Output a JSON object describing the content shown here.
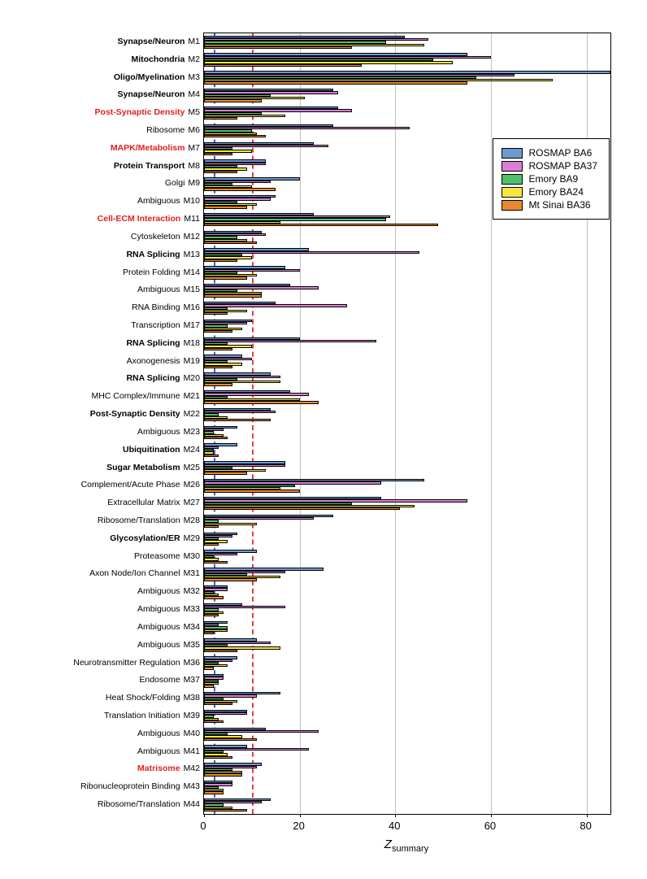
{
  "chart": {
    "type": "bar-grouped-horizontal",
    "x_axis": {
      "title": "Z_summary",
      "min": 0,
      "max": 85,
      "ticks": [
        0,
        20,
        40,
        60,
        80
      ],
      "gridlines": [
        20,
        40,
        60,
        80
      ]
    },
    "reference_lines": [
      {
        "value": 2,
        "color": "#4060d0",
        "style": "dashed"
      },
      {
        "value": 10,
        "color": "#e04040",
        "style": "dashed"
      }
    ],
    "series": [
      {
        "key": "ros6",
        "label": "ROSMAP BA6",
        "color": "#6a9bd1"
      },
      {
        "key": "ros37",
        "label": "ROSMAP BA37",
        "color": "#d97fd4"
      },
      {
        "key": "em9",
        "label": "Emory BA9",
        "color": "#4fbf6a"
      },
      {
        "key": "em24",
        "label": "Emory BA24",
        "color": "#f5e63c"
      },
      {
        "key": "mts36",
        "label": "Mt Sinai BA36",
        "color": "#e8882c"
      }
    ],
    "background_color": "#ffffff",
    "grid_color": "#c0c0c0",
    "label_fontsize": 10.5,
    "tick_fontsize": 13,
    "modules": [
      {
        "code": "M1",
        "name": "Synapse/Neuron",
        "style": "bold",
        "values": {
          "ros6": 42,
          "ros37": 47,
          "em9": 38,
          "em24": 46,
          "mts36": 31
        }
      },
      {
        "code": "M2",
        "name": "Mitochondria",
        "style": "bold",
        "values": {
          "ros6": 55,
          "ros37": 60,
          "em9": 48,
          "em24": 52,
          "mts36": 33
        }
      },
      {
        "code": "M3",
        "name": "Oligo/Myelination",
        "style": "bold",
        "values": {
          "ros6": 85,
          "ros37": 65,
          "em9": 57,
          "em24": 73,
          "mts36": 55
        }
      },
      {
        "code": "M4",
        "name": "Synapse/Neuron",
        "style": "bold",
        "values": {
          "ros6": 27,
          "ros37": 28,
          "em9": 14,
          "em24": 21,
          "mts36": 12
        }
      },
      {
        "code": "M5",
        "name": "Post-Synaptic Density",
        "style": "red",
        "values": {
          "ros6": 28,
          "ros37": 31,
          "em9": 12,
          "em24": 17,
          "mts36": 7
        }
      },
      {
        "code": "M6",
        "name": "Ribosome",
        "style": "plain",
        "values": {
          "ros6": 27,
          "ros37": 43,
          "em9": 10,
          "em24": 11,
          "mts36": 13
        }
      },
      {
        "code": "M7",
        "name": "MAPK/Metabolism",
        "style": "red",
        "values": {
          "ros6": 23,
          "ros37": 26,
          "em9": 6,
          "em24": 10,
          "mts36": 6
        }
      },
      {
        "code": "M8",
        "name": "Protein Transport",
        "style": "bold",
        "values": {
          "ros6": 13,
          "ros37": 13,
          "em9": 7,
          "em24": 9,
          "mts36": 7
        }
      },
      {
        "code": "M9",
        "name": "Golgi",
        "style": "plain",
        "values": {
          "ros6": 20,
          "ros37": 14,
          "em9": 6,
          "em24": 10,
          "mts36": 15
        }
      },
      {
        "code": "M10",
        "name": "Ambiguous",
        "style": "plain",
        "values": {
          "ros6": 15,
          "ros37": 14,
          "em9": 7,
          "em24": 11,
          "mts36": 9
        }
      },
      {
        "code": "M11",
        "name": "Cell-ECM Interaction",
        "style": "red",
        "values": {
          "ros6": 23,
          "ros37": 39,
          "em9": 38,
          "em24": 16,
          "mts36": 49
        }
      },
      {
        "code": "M12",
        "name": "Cytoskeleton",
        "style": "plain",
        "values": {
          "ros6": 12,
          "ros37": 13,
          "em9": 7,
          "em24": 9,
          "mts36": 11
        }
      },
      {
        "code": "M13",
        "name": "RNA Splicing",
        "style": "bold",
        "values": {
          "ros6": 22,
          "ros37": 45,
          "em9": 8,
          "em24": 10,
          "mts36": 7
        }
      },
      {
        "code": "M14",
        "name": "Protein Folding",
        "style": "plain",
        "values": {
          "ros6": 17,
          "ros37": 20,
          "em9": 7,
          "em24": 11,
          "mts36": 9
        }
      },
      {
        "code": "M15",
        "name": "Ambiguous",
        "style": "plain",
        "values": {
          "ros6": 18,
          "ros37": 24,
          "em9": 7,
          "em24": 12,
          "mts36": 12
        }
      },
      {
        "code": "M16",
        "name": "RNA Binding",
        "style": "plain",
        "values": {
          "ros6": 15,
          "ros37": 30,
          "em9": 5,
          "em24": 9,
          "mts36": 5
        }
      },
      {
        "code": "M17",
        "name": "Transcription",
        "style": "plain",
        "values": {
          "ros6": 10,
          "ros37": 9,
          "em9": 5,
          "em24": 8,
          "mts36": 6
        }
      },
      {
        "code": "M18",
        "name": "RNA Splicing",
        "style": "bold",
        "values": {
          "ros6": 20,
          "ros37": 36,
          "em9": 5,
          "em24": 10,
          "mts36": 6
        }
      },
      {
        "code": "M19",
        "name": "Axonogenesis",
        "style": "plain",
        "values": {
          "ros6": 8,
          "ros37": 10,
          "em9": 5,
          "em24": 8,
          "mts36": 6
        }
      },
      {
        "code": "M20",
        "name": "RNA Splicing",
        "style": "bold",
        "values": {
          "ros6": 14,
          "ros37": 16,
          "em9": 7,
          "em24": 16,
          "mts36": 6
        }
      },
      {
        "code": "M21",
        "name": "MHC Complex/Immune",
        "style": "plain",
        "values": {
          "ros6": 18,
          "ros37": 22,
          "em9": 5,
          "em24": 20,
          "mts36": 24
        }
      },
      {
        "code": "M22",
        "name": "Post-Synaptic Density",
        "style": "bold",
        "values": {
          "ros6": 14,
          "ros37": 15,
          "em9": 3,
          "em24": 5,
          "mts36": 14
        }
      },
      {
        "code": "M23",
        "name": "Ambiguous",
        "style": "plain",
        "values": {
          "ros6": 7,
          "ros37": 4,
          "em9": 2,
          "em24": 4,
          "mts36": 5
        }
      },
      {
        "code": "M24",
        "name": "Ubiquitination",
        "style": "bold",
        "values": {
          "ros6": 7,
          "ros37": 3,
          "em9": 2,
          "em24": 2,
          "mts36": 3
        }
      },
      {
        "code": "M25",
        "name": "Sugar Metabolism",
        "style": "bold",
        "values": {
          "ros6": 17,
          "ros37": 17,
          "em9": 6,
          "em24": 13,
          "mts36": 9
        }
      },
      {
        "code": "M26",
        "name": "Complement/Acute Phase",
        "style": "plain",
        "values": {
          "ros6": 46,
          "ros37": 37,
          "em9": 19,
          "em24": 16,
          "mts36": 20
        }
      },
      {
        "code": "M27",
        "name": "Extracellular Matrix",
        "style": "plain",
        "values": {
          "ros6": 37,
          "ros37": 55,
          "em9": 31,
          "em24": 44,
          "mts36": 41
        }
      },
      {
        "code": "M28",
        "name": "Ribosome/Translation",
        "style": "plain",
        "values": {
          "ros6": 27,
          "ros37": 23,
          "em9": 3,
          "em24": 11,
          "mts36": 3
        }
      },
      {
        "code": "M29",
        "name": "Glycosylation/ER",
        "style": "bold",
        "values": {
          "ros6": 7,
          "ros37": 6,
          "em9": 3,
          "em24": 5,
          "mts36": 3
        }
      },
      {
        "code": "M30",
        "name": "Proteasome",
        "style": "plain",
        "values": {
          "ros6": 11,
          "ros37": 7,
          "em9": 2,
          "em24": 3,
          "mts36": 5
        }
      },
      {
        "code": "M31",
        "name": "Axon Node/Ion Channel",
        "style": "plain",
        "values": {
          "ros6": 25,
          "ros37": 17,
          "em9": 9,
          "em24": 16,
          "mts36": 11
        }
      },
      {
        "code": "M32",
        "name": "Ambiguous",
        "style": "plain",
        "values": {
          "ros6": 5,
          "ros37": 5,
          "em9": 2,
          "em24": 3,
          "mts36": 4
        }
      },
      {
        "code": "M33",
        "name": "Ambiguous",
        "style": "plain",
        "values": {
          "ros6": 8,
          "ros37": 17,
          "em9": 3,
          "em24": 4,
          "mts36": 3
        }
      },
      {
        "code": "M34",
        "name": "Ambiguous",
        "style": "plain",
        "values": {
          "ros6": 5,
          "ros37": 3,
          "em9": 5,
          "em24": 5,
          "mts36": 2
        }
      },
      {
        "code": "M35",
        "name": "Ambiguous",
        "style": "plain",
        "values": {
          "ros6": 11,
          "ros37": 14,
          "em9": 5,
          "em24": 16,
          "mts36": 7
        }
      },
      {
        "code": "M36",
        "name": "Neurotransmitter Regulation",
        "style": "plain",
        "values": {
          "ros6": 7,
          "ros37": 6,
          "em9": 3,
          "em24": 5,
          "mts36": 2
        }
      },
      {
        "code": "M37",
        "name": "Endosome",
        "style": "plain",
        "values": {
          "ros6": 4,
          "ros37": 4,
          "em9": 3,
          "em24": 3,
          "mts36": 2
        }
      },
      {
        "code": "M38",
        "name": "Heat Shock/Folding",
        "style": "plain",
        "values": {
          "ros6": 16,
          "ros37": 11,
          "em9": 4,
          "em24": 7,
          "mts36": 6
        }
      },
      {
        "code": "M39",
        "name": "Translation Initiation",
        "style": "plain",
        "values": {
          "ros6": 9,
          "ros37": 9,
          "em9": 2,
          "em24": 3,
          "mts36": 4
        }
      },
      {
        "code": "M40",
        "name": "Ambiguous",
        "style": "plain",
        "values": {
          "ros6": 13,
          "ros37": 24,
          "em9": 5,
          "em24": 8,
          "mts36": 11
        }
      },
      {
        "code": "M41",
        "name": "Ambiguous",
        "style": "plain",
        "values": {
          "ros6": 9,
          "ros37": 22,
          "em9": 4,
          "em24": 5,
          "mts36": 6
        }
      },
      {
        "code": "M42",
        "name": "Matrisome",
        "style": "red",
        "values": {
          "ros6": 12,
          "ros37": 11,
          "em9": 6,
          "em24": 8,
          "mts36": 8
        }
      },
      {
        "code": "M43",
        "name": "Ribonucleoprotein Binding",
        "style": "plain",
        "values": {
          "ros6": 6,
          "ros37": 6,
          "em9": 3,
          "em24": 4,
          "mts36": 4
        }
      },
      {
        "code": "M44",
        "name": "Ribosome/Translation",
        "style": "plain",
        "values": {
          "ros6": 14,
          "ros37": 12,
          "em9": 4,
          "em24": 6,
          "mts36": 9
        }
      }
    ]
  }
}
